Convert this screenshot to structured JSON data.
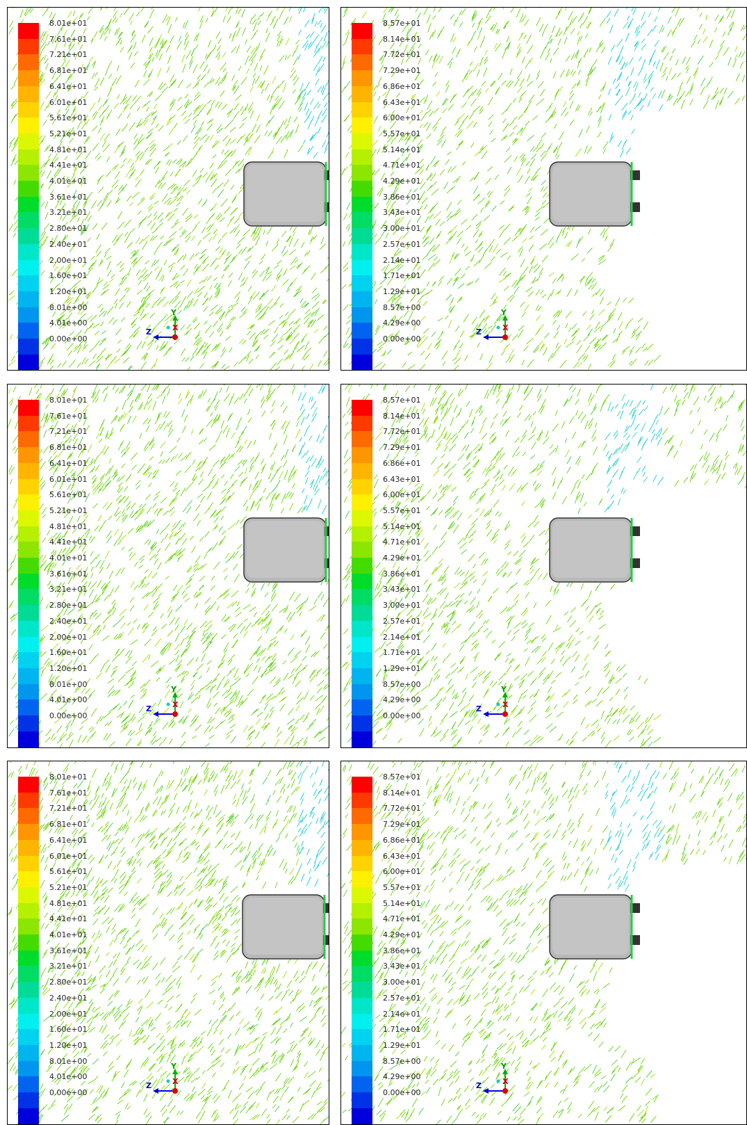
{
  "legend_colors": [
    "#ff0000",
    "#ff3a00",
    "#ff6a00",
    "#ff9500",
    "#ffb400",
    "#ffd200",
    "#fff000",
    "#dcf800",
    "#b4f000",
    "#8ce600",
    "#44dc00",
    "#00dc2a",
    "#00dc64",
    "#00dc96",
    "#00e6c8",
    "#00f0f0",
    "#00d2f0",
    "#00b4f0",
    "#0096f0",
    "#0064f0",
    "#0032e6",
    "#0000dc"
  ],
  "color_scales": {
    "a": [
      "8.01e+01",
      "7.61e+01",
      "7.21e+01",
      "6.81e+01",
      "6.41e+01",
      "6.01e+01",
      "5.61e+01",
      "5.21e+01",
      "4.81e+01",
      "4.41e+01",
      "4.01e+01",
      "3.61e+01",
      "3.21e+01",
      "2.80e+01",
      "2.40e+01",
      "2.00e+01",
      "1.60e+01",
      "1.20e+01",
      "8.01e+00",
      "4.01e+00",
      "0.00e+00"
    ],
    "b": [
      "8.57e+01",
      "8.14e+01",
      "7.72e+01",
      "7.29e+01",
      "6.86e+01",
      "6.43e+01",
      "6.00e+01",
      "5.57e+01",
      "5.14e+01",
      "4.71e+01",
      "4.29e+01",
      "3.86e+01",
      "3.43e+01",
      "3.00e+01",
      "2.57e+01",
      "2.14e+01",
      "1.71e+01",
      "1.29e+01",
      "8.57e+00",
      "4.29e+00",
      "0.00e+00"
    ]
  },
  "axis_labels": {
    "y": "Y",
    "z": "Z",
    "x": "X"
  },
  "panels": [
    {
      "scale": "a"
    },
    {
      "scale": "b"
    },
    {
      "scale": "a"
    },
    {
      "scale": "b"
    },
    {
      "scale": "a"
    },
    {
      "scale": "b"
    }
  ]
}
